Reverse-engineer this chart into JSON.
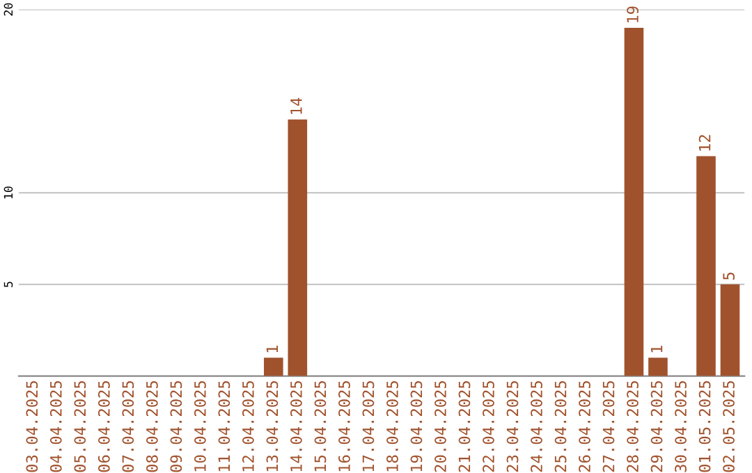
{
  "chart_data": {
    "type": "bar",
    "categories": [
      "03.04.2025",
      "04.04.2025",
      "05.04.2025",
      "06.04.2025",
      "07.04.2025",
      "08.04.2025",
      "09.04.2025",
      "10.04.2025",
      "11.04.2025",
      "12.04.2025",
      "13.04.2025",
      "14.04.2025",
      "15.04.2025",
      "16.04.2025",
      "17.04.2025",
      "18.04.2025",
      "19.04.2025",
      "20.04.2025",
      "21.04.2025",
      "22.04.2025",
      "23.04.2025",
      "24.04.2025",
      "25.04.2025",
      "26.04.2025",
      "27.04.2025",
      "28.04.2025",
      "29.04.2025",
      "30.04.2025",
      "01.05.2025",
      "02.05.2025"
    ],
    "values": [
      0,
      0,
      0,
      0,
      0,
      0,
      0,
      0,
      0,
      0,
      1,
      14,
      0,
      0,
      0,
      0,
      0,
      0,
      0,
      0,
      0,
      0,
      0,
      0,
      0,
      19,
      1,
      0,
      12,
      5
    ],
    "value_labels": [
      null,
      null,
      null,
      null,
      null,
      null,
      null,
      null,
      null,
      null,
      "1",
      "14",
      null,
      null,
      null,
      null,
      null,
      null,
      null,
      null,
      null,
      null,
      null,
      null,
      null,
      "19",
      "1",
      null,
      "12",
      "5"
    ],
    "color": "#a0522d",
    "ylim": [
      0,
      20
    ],
    "yticks": [
      5,
      10,
      20
    ],
    "grid": "y"
  }
}
